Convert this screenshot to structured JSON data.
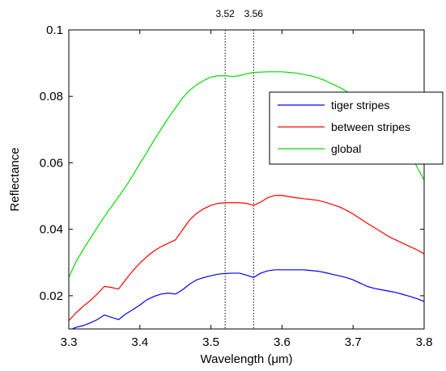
{
  "chart_data": {
    "type": "line",
    "title": "",
    "xlabel": "Wavelength (μm)",
    "ylabel": "Reflectance",
    "xlim": [
      3.3,
      3.8
    ],
    "ylim": [
      0.01,
      0.1
    ],
    "x_ticks": [
      3.3,
      3.4,
      3.5,
      3.6,
      3.7,
      3.8
    ],
    "x_tick_labels": [
      "3.3",
      "3.4",
      "3.5",
      "3.6",
      "3.7",
      "3.8"
    ],
    "y_ticks": [
      0.02,
      0.04,
      0.06,
      0.08,
      0.1
    ],
    "y_tick_labels": [
      "0.02",
      "0.04",
      "0.06",
      "0.08",
      "0.1"
    ],
    "grid": false,
    "legend_position": "top-right",
    "vertical_markers": [
      {
        "x": 3.52,
        "label": "3.52"
      },
      {
        "x": 3.56,
        "label": "3.56"
      }
    ],
    "series": [
      {
        "name": "tiger stripes",
        "color": "#0000ff",
        "x": [
          3.3,
          3.31,
          3.32,
          3.33,
          3.34,
          3.35,
          3.36,
          3.37,
          3.38,
          3.39,
          3.4,
          3.41,
          3.42,
          3.43,
          3.44,
          3.45,
          3.46,
          3.47,
          3.48,
          3.49,
          3.5,
          3.51,
          3.52,
          3.53,
          3.54,
          3.55,
          3.56,
          3.57,
          3.58,
          3.59,
          3.6,
          3.61,
          3.62,
          3.63,
          3.64,
          3.65,
          3.66,
          3.67,
          3.68,
          3.69,
          3.7,
          3.71,
          3.72,
          3.73,
          3.74,
          3.75,
          3.76,
          3.77,
          3.78,
          3.79,
          3.8
        ],
        "y": [
          0.0095,
          0.0105,
          0.011,
          0.0118,
          0.0128,
          0.0142,
          0.0135,
          0.0128,
          0.0145,
          0.0158,
          0.0172,
          0.0188,
          0.0198,
          0.0205,
          0.0208,
          0.0205,
          0.0218,
          0.0235,
          0.0248,
          0.0255,
          0.026,
          0.0265,
          0.0267,
          0.0268,
          0.0268,
          0.0262,
          0.0255,
          0.0268,
          0.0275,
          0.0278,
          0.0278,
          0.0278,
          0.0278,
          0.0278,
          0.0276,
          0.0274,
          0.027,
          0.0265,
          0.026,
          0.0255,
          0.0248,
          0.0238,
          0.0228,
          0.0222,
          0.0218,
          0.0214,
          0.021,
          0.0204,
          0.0198,
          0.0191,
          0.0183
        ]
      },
      {
        "name": "between stripes",
        "color": "#ff0000",
        "x": [
          3.3,
          3.31,
          3.32,
          3.33,
          3.34,
          3.35,
          3.36,
          3.37,
          3.38,
          3.39,
          3.4,
          3.41,
          3.42,
          3.43,
          3.44,
          3.45,
          3.46,
          3.47,
          3.48,
          3.49,
          3.5,
          3.51,
          3.52,
          3.53,
          3.54,
          3.55,
          3.56,
          3.57,
          3.58,
          3.59,
          3.6,
          3.61,
          3.62,
          3.63,
          3.64,
          3.65,
          3.66,
          3.67,
          3.68,
          3.69,
          3.7,
          3.71,
          3.72,
          3.73,
          3.74,
          3.75,
          3.76,
          3.77,
          3.78,
          3.79,
          3.8
        ],
        "y": [
          0.0125,
          0.0148,
          0.0168,
          0.0185,
          0.0205,
          0.0228,
          0.0225,
          0.022,
          0.0248,
          0.0275,
          0.0298,
          0.0318,
          0.0335,
          0.0348,
          0.0358,
          0.0368,
          0.0398,
          0.0428,
          0.0448,
          0.0462,
          0.0472,
          0.0478,
          0.048,
          0.048,
          0.048,
          0.0478,
          0.0472,
          0.0482,
          0.0495,
          0.0502,
          0.0502,
          0.0498,
          0.0495,
          0.0492,
          0.049,
          0.0487,
          0.0482,
          0.0475,
          0.0468,
          0.0458,
          0.0446,
          0.0432,
          0.0418,
          0.0405,
          0.0392,
          0.0378,
          0.0368,
          0.0358,
          0.0348,
          0.0338,
          0.0326
        ]
      },
      {
        "name": "global",
        "color": "#00dd00",
        "x": [
          3.3,
          3.31,
          3.32,
          3.33,
          3.34,
          3.35,
          3.36,
          3.37,
          3.38,
          3.39,
          3.4,
          3.41,
          3.42,
          3.43,
          3.44,
          3.45,
          3.46,
          3.47,
          3.48,
          3.49,
          3.5,
          3.51,
          3.52,
          3.53,
          3.54,
          3.55,
          3.56,
          3.57,
          3.58,
          3.59,
          3.6,
          3.61,
          3.62,
          3.63,
          3.64,
          3.65,
          3.66,
          3.67,
          3.68,
          3.69,
          3.7,
          3.71,
          3.72,
          3.73,
          3.74,
          3.75,
          3.76,
          3.77,
          3.78,
          3.79,
          3.8
        ],
        "y": [
          0.0255,
          0.0302,
          0.0338,
          0.0372,
          0.0405,
          0.0438,
          0.0468,
          0.0498,
          0.0528,
          0.0562,
          0.0598,
          0.0632,
          0.0668,
          0.0702,
          0.0735,
          0.0765,
          0.0795,
          0.0818,
          0.0835,
          0.0848,
          0.0858,
          0.0862,
          0.0862,
          0.086,
          0.0862,
          0.0868,
          0.0872,
          0.0873,
          0.0874,
          0.0874,
          0.0874,
          0.0872,
          0.087,
          0.0866,
          0.0862,
          0.0856,
          0.0848,
          0.0838,
          0.0828,
          0.0816,
          0.0802,
          0.0785,
          0.0768,
          0.0748,
          0.0728,
          0.0705,
          0.068,
          0.0655,
          0.0625,
          0.0588,
          0.0548
        ]
      }
    ]
  }
}
